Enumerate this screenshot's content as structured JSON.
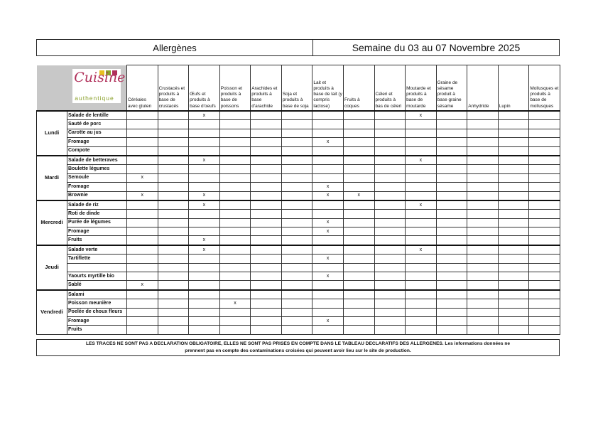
{
  "title": {
    "left": "Allergènes",
    "right": "Semaine du 03 au 07 Novembre 2025"
  },
  "logo": {
    "line1": "Cuisine",
    "line2": "authentique"
  },
  "columns": [
    "Céréales avec gluten",
    "Crustacés et produits à base de crustacés",
    "Œufs et produits à base d'oeufs",
    "Poisson et produits à base de poissons",
    "Arachides et produits à base d'arachide",
    "Soja et produits à base de soja",
    "Lait et produits à base de lait (y compris lactose)",
    "Fruits à coques",
    "Céleri et produits à bas de céleri",
    "Moutarde et produits à base de moutarde",
    "Graine de sésame produit à base graine sésame",
    "Anhydride",
    "Lupin",
    "Mollusques et produits à base de mollusques"
  ],
  "mark_symbol": "x",
  "days": [
    {
      "day": "Lundi",
      "dishes": [
        {
          "name": "Salade de lentille",
          "marks": [
            2,
            9
          ]
        },
        {
          "name": "Sauté de porc",
          "marks": []
        },
        {
          "name": "Carotte au jus",
          "marks": []
        },
        {
          "name": "Fromage",
          "marks": [
            6
          ]
        },
        {
          "name": "Compote",
          "marks": []
        }
      ]
    },
    {
      "day": "Mardi",
      "dishes": [
        {
          "name": "Salade de betteraves",
          "marks": [
            2,
            9
          ]
        },
        {
          "name": "Boulette légumes",
          "marks": []
        },
        {
          "name": "Semoule",
          "marks": [
            0
          ]
        },
        {
          "name": "Fromage",
          "marks": [
            6
          ]
        },
        {
          "name": "Brownie",
          "marks": [
            0,
            2,
            6,
            7
          ]
        }
      ]
    },
    {
      "day": "Mercredi",
      "dishes": [
        {
          "name": "Salade de riz",
          "marks": [
            2,
            9
          ]
        },
        {
          "name": "Roti de dinde",
          "marks": []
        },
        {
          "name": "Purée de légumes",
          "marks": [
            6
          ]
        },
        {
          "name": "Fromage",
          "marks": [
            6
          ]
        },
        {
          "name": "Fruits",
          "marks": [
            2
          ]
        }
      ]
    },
    {
      "day": "Jeudi",
      "dishes": [
        {
          "name": "Salade verte",
          "marks": [
            2,
            9
          ]
        },
        {
          "name": "Tartiflette",
          "marks": [
            6
          ]
        },
        {
          "name": "",
          "marks": []
        },
        {
          "name": "Yaourts myrtille bio",
          "marks": [
            6
          ]
        },
        {
          "name": "Sablé",
          "marks": [
            0
          ]
        }
      ]
    },
    {
      "day": "Vendredi",
      "dishes": [
        {
          "name": "Salami",
          "marks": []
        },
        {
          "name": "Poisson meunière",
          "marks": [
            3
          ]
        },
        {
          "name": "Poelée de choux fleurs",
          "marks": []
        },
        {
          "name": "Fromage",
          "marks": [
            6
          ]
        },
        {
          "name": "Fruits",
          "marks": []
        }
      ]
    }
  ],
  "footer": {
    "line1": "LES TRACES NE SONT PAS A DECLARATION OBLIGATOIRE, ELLES NE SONT PAS PRISES EN COMPTE DANS LE TABLEAU DECLARATIFS DES ALLERGENES. Les informations données ne",
    "line2": "prennent pas en compte des contaminations croisées qui peuvent avoir lieu sur le site de production."
  },
  "colors": {
    "header_bg": "#c8c8c8",
    "logo_pink": "#b0305a",
    "logo_green": "#8aa02a"
  }
}
